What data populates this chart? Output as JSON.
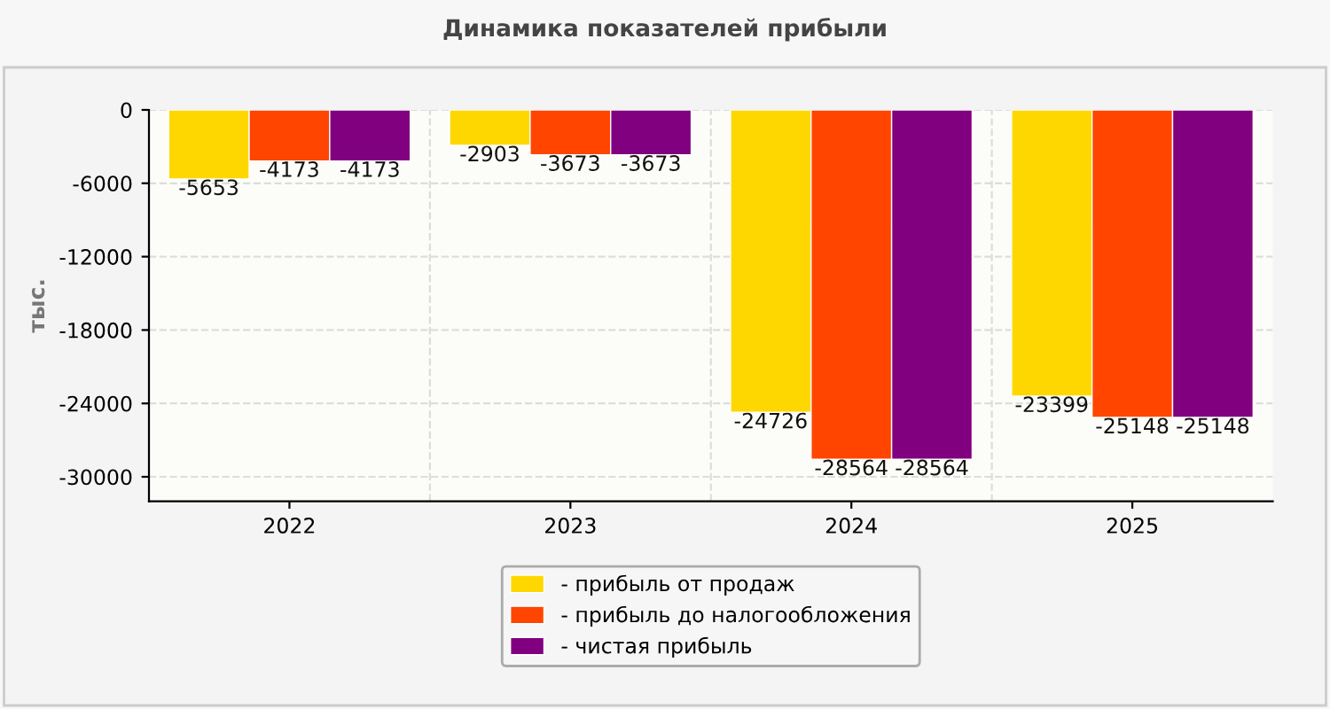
{
  "chart_data": {
    "type": "bar",
    "title": "Динамика показателей прибыли",
    "ylabel": "тыс.",
    "categories": [
      "2022",
      "2023",
      "2024",
      "2025"
    ],
    "series": [
      {
        "name": "- прибыль от продаж",
        "color": "#ffd700",
        "values": [
          -5653,
          -2903,
          -24726,
          -23399
        ]
      },
      {
        "name": "- прибыль до налогообложения",
        "color": "#ff4500",
        "values": [
          -4173,
          -3673,
          -28564,
          -25148
        ]
      },
      {
        "name": "- чистая прибыль",
        "color": "#800080",
        "values": [
          -4173,
          -3673,
          -28564,
          -25148
        ]
      }
    ],
    "ylim": [
      -32000,
      0
    ],
    "yticks": [
      0,
      -6000,
      -12000,
      -18000,
      -24000,
      -30000
    ],
    "grid": true,
    "legend": "bottom",
    "data_labels": true
  }
}
